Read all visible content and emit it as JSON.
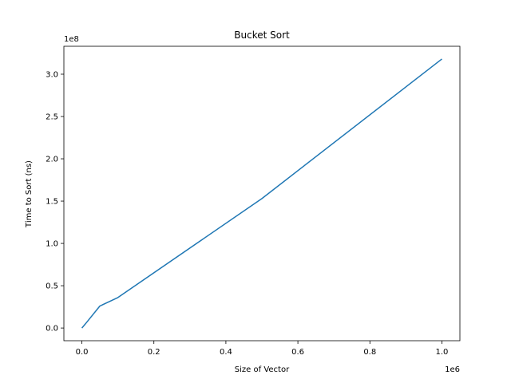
{
  "chart_data": {
    "type": "line",
    "title": "Bucket Sort",
    "xlabel": "Size of Vector",
    "ylabel": "Time to Sort (ns)",
    "x_offset_label": "1e6",
    "y_offset_label": "1e8",
    "xlim": [
      -50000,
      1050000
    ],
    "ylim": [
      -15000000,
      333000000
    ],
    "x_ticks": [
      0,
      200000,
      400000,
      600000,
      800000,
      1000000
    ],
    "x_tick_labels": [
      "0.0",
      "0.2",
      "0.4",
      "0.6",
      "0.8",
      "1.0"
    ],
    "y_ticks": [
      0,
      50000000,
      100000000,
      150000000,
      200000000,
      250000000,
      300000000
    ],
    "y_tick_labels": [
      "0.0",
      "0.5",
      "1.0",
      "1.5",
      "2.0",
      "2.5",
      "3.0"
    ],
    "grid": false,
    "series": [
      {
        "color": "#1f77b4",
        "x": [
          0,
          10000,
          50000,
          100000,
          500000,
          1000000
        ],
        "y": [
          0,
          5000000,
          26000000,
          36000000,
          153000000,
          318000000
        ]
      }
    ]
  }
}
